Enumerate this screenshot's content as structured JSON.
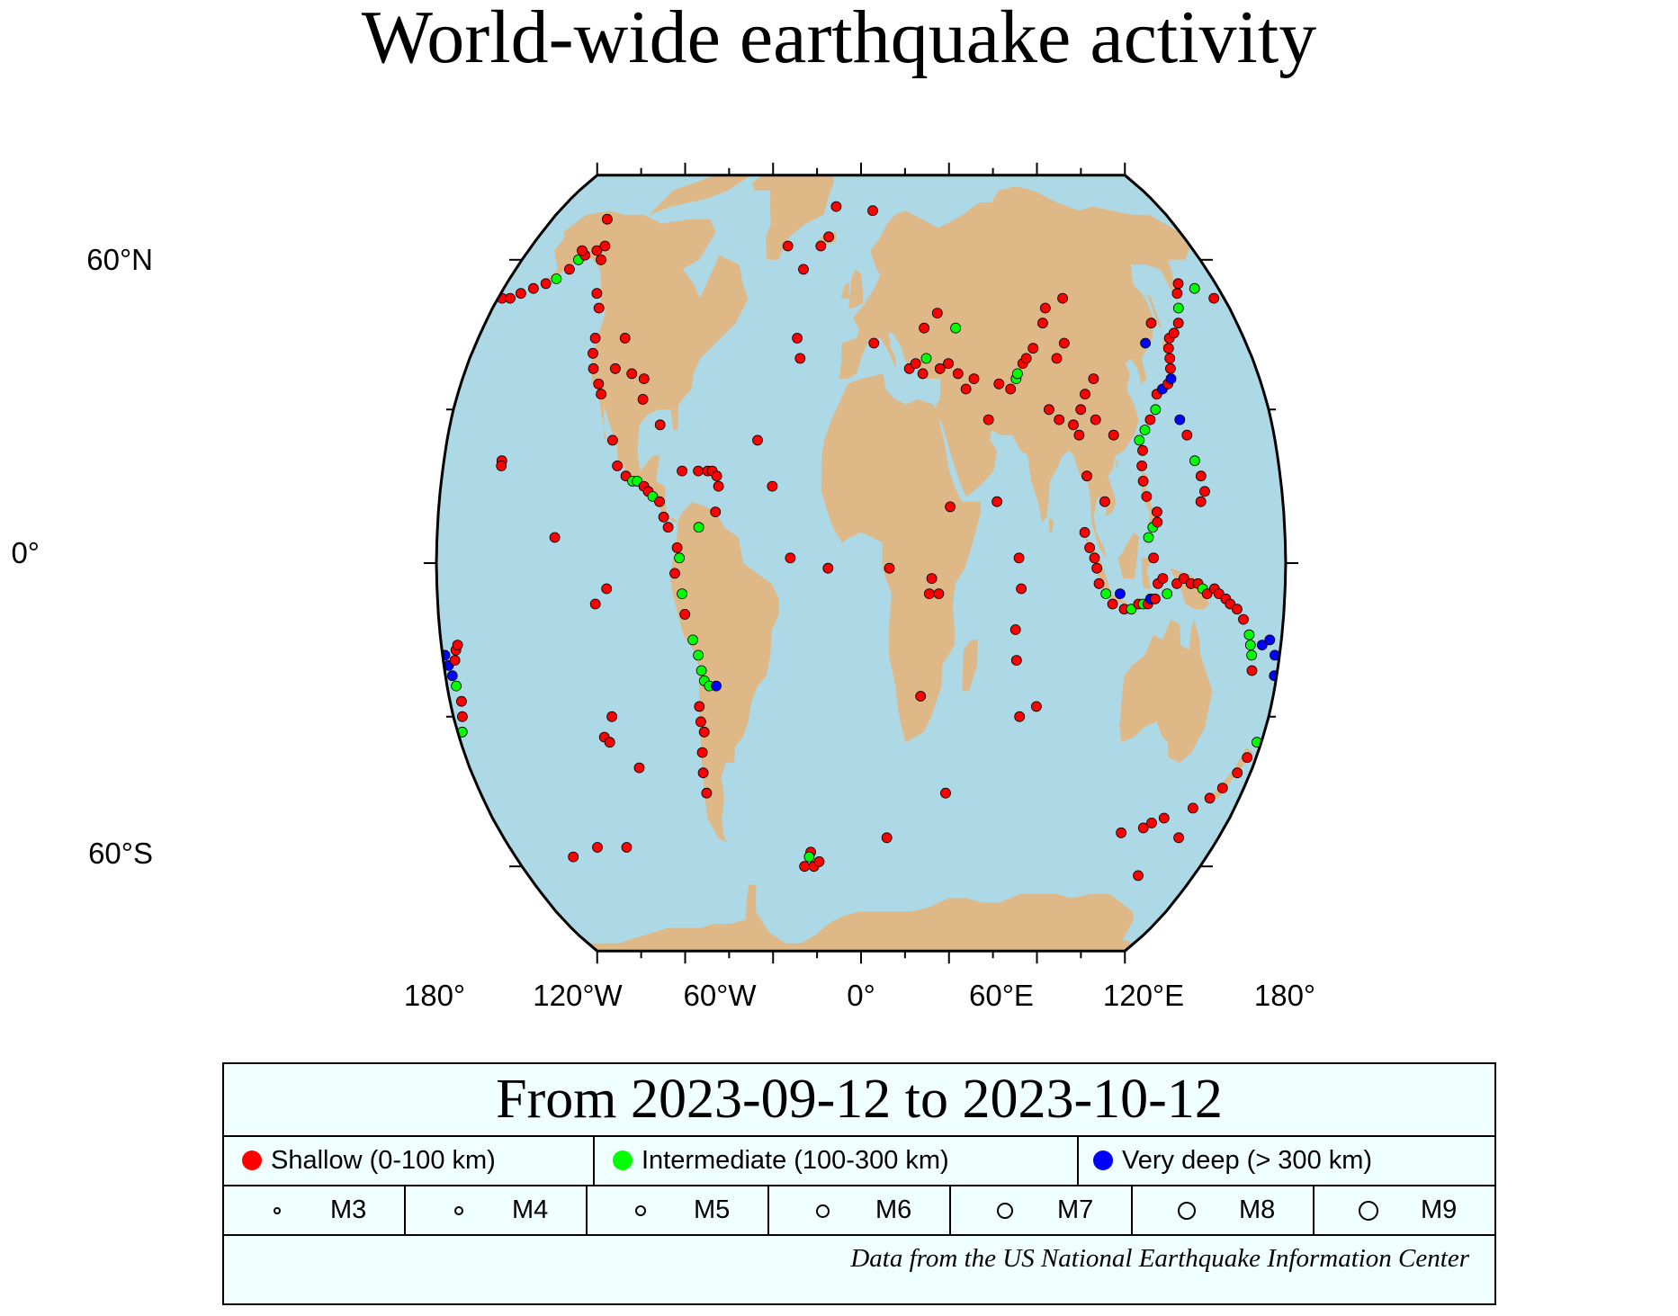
{
  "title": "World-wide earthquake activity",
  "axes": {
    "lat_labels": [
      "60°N",
      "0°",
      "60°S"
    ],
    "lon_labels": [
      "180°",
      "120°W",
      "60°W",
      "0°",
      "60°E",
      "120°E",
      "180°"
    ]
  },
  "colors": {
    "ocean": "#add8e6",
    "land": "#deb887",
    "shallow": "#ff0000",
    "intermediate": "#00ff00",
    "very_deep": "#0000ff",
    "legend_bg": "#f0ffff"
  },
  "legend": {
    "heading": "From 2023-09-12 to 2023-10-12",
    "depth_classes": [
      {
        "label": "Shallow (0-100 km)",
        "color": "#ff0000"
      },
      {
        "label": "Intermediate (100-300 km)",
        "color": "#00ff00"
      },
      {
        "label": "Very deep (> 300 km)",
        "color": "#0000ff"
      }
    ],
    "magnitudes": [
      "M3",
      "M4",
      "M5",
      "M6",
      "M7",
      "M8",
      "M9"
    ],
    "source": "Data from the US National Earthquake Information Center"
  },
  "earthquakes": [
    {
      "lon": -178,
      "lat": 52,
      "depth": "shallow"
    },
    {
      "lon": -174,
      "lat": 52,
      "depth": "shallow"
    },
    {
      "lon": -170,
      "lat": 53,
      "depth": "shallow"
    },
    {
      "lon": -165,
      "lat": 54,
      "depth": "shallow"
    },
    {
      "lon": -160,
      "lat": 55,
      "depth": "shallow"
    },
    {
      "lon": -156,
      "lat": 56,
      "depth": "intermediate"
    },
    {
      "lon": -152,
      "lat": 58,
      "depth": "shallow"
    },
    {
      "lon": -150,
      "lat": 60,
      "depth": "intermediate"
    },
    {
      "lon": -148,
      "lat": 61,
      "depth": "shallow"
    },
    {
      "lon": -151,
      "lat": 62,
      "depth": "shallow"
    },
    {
      "lon": -143,
      "lat": 62,
      "depth": "shallow"
    },
    {
      "lon": -140,
      "lat": 63,
      "depth": "shallow"
    },
    {
      "lon": -138,
      "lat": 60,
      "depth": "shallow"
    },
    {
      "lon": -148,
      "lat": 69,
      "depth": "shallow"
    },
    {
      "lon": -132,
      "lat": 53,
      "depth": "shallow"
    },
    {
      "lon": -128,
      "lat": 50,
      "depth": "shallow"
    },
    {
      "lon": -125,
      "lat": 44,
      "depth": "shallow"
    },
    {
      "lon": -124,
      "lat": 41,
      "depth": "shallow"
    },
    {
      "lon": -122,
      "lat": 38,
      "depth": "shallow"
    },
    {
      "lon": -118,
      "lat": 35,
      "depth": "shallow"
    },
    {
      "lon": -116,
      "lat": 33,
      "depth": "shallow"
    },
    {
      "lon": -112,
      "lat": 38,
      "depth": "shallow"
    },
    {
      "lon": -111,
      "lat": 44,
      "depth": "shallow"
    },
    {
      "lon": -104,
      "lat": 37,
      "depth": "shallow"
    },
    {
      "lon": -98,
      "lat": 36,
      "depth": "shallow"
    },
    {
      "lon": -97,
      "lat": 32,
      "depth": "shallow"
    },
    {
      "lon": -155,
      "lat": 20,
      "depth": "shallow"
    },
    {
      "lon": -155,
      "lat": 19,
      "depth": "shallow"
    },
    {
      "lon": -108,
      "lat": 24,
      "depth": "shallow"
    },
    {
      "lon": -105,
      "lat": 19,
      "depth": "shallow"
    },
    {
      "lon": -101,
      "lat": 17,
      "depth": "shallow"
    },
    {
      "lon": -98,
      "lat": 16,
      "depth": "intermediate"
    },
    {
      "lon": -96,
      "lat": 16,
      "depth": "intermediate"
    },
    {
      "lon": -93,
      "lat": 15,
      "depth": "shallow"
    },
    {
      "lon": -91,
      "lat": 14,
      "depth": "shallow"
    },
    {
      "lon": -89,
      "lat": 13,
      "depth": "intermediate"
    },
    {
      "lon": -86,
      "lat": 12,
      "depth": "shallow"
    },
    {
      "lon": -84,
      "lat": 9,
      "depth": "shallow"
    },
    {
      "lon": -82,
      "lat": 7,
      "depth": "shallow"
    },
    {
      "lon": -78,
      "lat": 3,
      "depth": "shallow"
    },
    {
      "lon": -77,
      "lat": 1,
      "depth": "intermediate"
    },
    {
      "lon": -79,
      "lat": -2,
      "depth": "shallow"
    },
    {
      "lon": -76,
      "lat": -6,
      "depth": "intermediate"
    },
    {
      "lon": -75,
      "lat": -10,
      "depth": "shallow"
    },
    {
      "lon": -72,
      "lat": -15,
      "depth": "intermediate"
    },
    {
      "lon": -70,
      "lat": -18,
      "depth": "intermediate"
    },
    {
      "lon": -69,
      "lat": -21,
      "depth": "intermediate"
    },
    {
      "lon": -68,
      "lat": -23,
      "depth": "intermediate"
    },
    {
      "lon": -66,
      "lat": -24,
      "depth": "intermediate"
    },
    {
      "lon": -63,
      "lat": -24,
      "depth": "very_deep"
    },
    {
      "lon": -71,
      "lat": -28,
      "depth": "shallow"
    },
    {
      "lon": -71,
      "lat": -31,
      "depth": "shallow"
    },
    {
      "lon": -70,
      "lat": -33,
      "depth": "shallow"
    },
    {
      "lon": -72,
      "lat": -37,
      "depth": "shallow"
    },
    {
      "lon": -73,
      "lat": -41,
      "depth": "shallow"
    },
    {
      "lon": -73,
      "lat": -45,
      "depth": "shallow"
    },
    {
      "lon": -70,
      "lat": 18,
      "depth": "shallow"
    },
    {
      "lon": -66,
      "lat": 18,
      "depth": "shallow"
    },
    {
      "lon": -64,
      "lat": 18,
      "depth": "shallow"
    },
    {
      "lon": -62,
      "lat": 17,
      "depth": "shallow"
    },
    {
      "lon": -77,
      "lat": 18,
      "depth": "shallow"
    },
    {
      "lon": -61,
      "lat": 15,
      "depth": "shallow"
    },
    {
      "lon": -62,
      "lat": 10,
      "depth": "shallow"
    },
    {
      "lon": -69,
      "lat": 7,
      "depth": "intermediate"
    },
    {
      "lon": -38,
      "lat": 15,
      "depth": "shallow"
    },
    {
      "lon": -28,
      "lat": 40,
      "depth": "shallow"
    },
    {
      "lon": -30,
      "lat": 44,
      "depth": "shallow"
    },
    {
      "lon": -45,
      "lat": 24,
      "depth": "shallow"
    },
    {
      "lon": -14,
      "lat": -1,
      "depth": "shallow"
    },
    {
      "lon": -30,
      "lat": 1,
      "depth": "shallow"
    },
    {
      "lon": -18,
      "lat": 65,
      "depth": "shallow"
    },
    {
      "lon": -22,
      "lat": 63,
      "depth": "shallow"
    },
    {
      "lon": -15,
      "lat": 72,
      "depth": "shallow"
    },
    {
      "lon": 7,
      "lat": 71,
      "depth": "shallow"
    },
    {
      "lon": -30,
      "lat": 58,
      "depth": "shallow"
    },
    {
      "lon": -40,
      "lat": 63,
      "depth": "shallow"
    },
    {
      "lon": -88,
      "lat": 27,
      "depth": "shallow"
    },
    {
      "lon": -130,
      "lat": 5,
      "depth": "shallow"
    },
    {
      "lon": -108,
      "lat": -5,
      "depth": "shallow"
    },
    {
      "lon": -113,
      "lat": -8,
      "depth": "shallow"
    },
    {
      "lon": -110,
      "lat": -30,
      "depth": "shallow"
    },
    {
      "lon": -115,
      "lat": -34,
      "depth": "shallow"
    },
    {
      "lon": -113,
      "lat": -35,
      "depth": "shallow"
    },
    {
      "lon": -102,
      "lat": -40,
      "depth": "shallow"
    },
    {
      "lon": -120,
      "lat": -56,
      "depth": "shallow"
    },
    {
      "lon": -135,
      "lat": -56,
      "depth": "shallow"
    },
    {
      "lon": -150,
      "lat": -58,
      "depth": "shallow"
    },
    {
      "lon": -26,
      "lat": -57,
      "depth": "shallow"
    },
    {
      "lon": -27,
      "lat": -58,
      "depth": "intermediate"
    },
    {
      "lon": -25,
      "lat": -60,
      "depth": "shallow"
    },
    {
      "lon": -22,
      "lat": -59,
      "depth": "shallow"
    },
    {
      "lon": -30,
      "lat": -60,
      "depth": "shallow"
    },
    {
      "lon": 13,
      "lat": -54,
      "depth": "shallow"
    },
    {
      "lon": 40,
      "lat": -45,
      "depth": "shallow"
    },
    {
      "lon": 70,
      "lat": -30,
      "depth": "shallow"
    },
    {
      "lon": 77,
      "lat": -28,
      "depth": "shallow"
    },
    {
      "lon": 67,
      "lat": -19,
      "depth": "shallow"
    },
    {
      "lon": 66,
      "lat": -13,
      "depth": "shallow"
    },
    {
      "lon": 68,
      "lat": -5,
      "depth": "shallow"
    },
    {
      "lon": 67,
      "lat": 1,
      "depth": "shallow"
    },
    {
      "lon": 58,
      "lat": 12,
      "depth": "shallow"
    },
    {
      "lon": 38,
      "lat": 11,
      "depth": "shallow"
    },
    {
      "lon": 30,
      "lat": -3,
      "depth": "shallow"
    },
    {
      "lon": 29,
      "lat": -6,
      "depth": "shallow"
    },
    {
      "lon": 33,
      "lat": -6,
      "depth": "shallow"
    },
    {
      "lon": 26,
      "lat": -26,
      "depth": "shallow"
    },
    {
      "lon": 12,
      "lat": -1,
      "depth": "shallow"
    },
    {
      "lon": 6,
      "lat": 43,
      "depth": "shallow"
    },
    {
      "lon": 22,
      "lat": 38,
      "depth": "shallow"
    },
    {
      "lon": 25,
      "lat": 39,
      "depth": "shallow"
    },
    {
      "lon": 28,
      "lat": 37,
      "depth": "shallow"
    },
    {
      "lon": 30,
      "lat": 40,
      "depth": "intermediate"
    },
    {
      "lon": 36,
      "lat": 38,
      "depth": "shallow"
    },
    {
      "lon": 40,
      "lat": 39,
      "depth": "shallow"
    },
    {
      "lon": 44,
      "lat": 37,
      "depth": "shallow"
    },
    {
      "lon": 47,
      "lat": 34,
      "depth": "shallow"
    },
    {
      "lon": 51,
      "lat": 36,
      "depth": "shallow"
    },
    {
      "lon": 56,
      "lat": 28,
      "depth": "shallow"
    },
    {
      "lon": 45,
      "lat": 46,
      "depth": "intermediate"
    },
    {
      "lon": 30,
      "lat": 46,
      "depth": "shallow"
    },
    {
      "lon": 37,
      "lat": 49,
      "depth": "shallow"
    },
    {
      "lon": 62,
      "lat": 35,
      "depth": "shallow"
    },
    {
      "lon": 67,
      "lat": 34,
      "depth": "shallow"
    },
    {
      "lon": 70,
      "lat": 36,
      "depth": "intermediate"
    },
    {
      "lon": 71,
      "lat": 37,
      "depth": "intermediate"
    },
    {
      "lon": 74,
      "lat": 39,
      "depth": "shallow"
    },
    {
      "lon": 76,
      "lat": 40,
      "depth": "shallow"
    },
    {
      "lon": 80,
      "lat": 42,
      "depth": "shallow"
    },
    {
      "lon": 83,
      "lat": 30,
      "depth": "shallow"
    },
    {
      "lon": 87,
      "lat": 28,
      "depth": "shallow"
    },
    {
      "lon": 93,
      "lat": 27,
      "depth": "shallow"
    },
    {
      "lon": 95,
      "lat": 25,
      "depth": "shallow"
    },
    {
      "lon": 97,
      "lat": 30,
      "depth": "shallow"
    },
    {
      "lon": 100,
      "lat": 33,
      "depth": "shallow"
    },
    {
      "lon": 103,
      "lat": 28,
      "depth": "shallow"
    },
    {
      "lon": 90,
      "lat": 40,
      "depth": "shallow"
    },
    {
      "lon": 105,
      "lat": 36,
      "depth": "shallow"
    },
    {
      "lon": 95,
      "lat": 43,
      "depth": "shallow"
    },
    {
      "lon": 87,
      "lat": 47,
      "depth": "shallow"
    },
    {
      "lon": 90,
      "lat": 50,
      "depth": "shallow"
    },
    {
      "lon": 100,
      "lat": 52,
      "depth": "shallow"
    },
    {
      "lon": 110,
      "lat": 25,
      "depth": "shallow"
    },
    {
      "lon": 97,
      "lat": 17,
      "depth": "shallow"
    },
    {
      "lon": 104,
      "lat": 12,
      "depth": "shallow"
    },
    {
      "lon": 95,
      "lat": 6,
      "depth": "shallow"
    },
    {
      "lon": 97,
      "lat": 3,
      "depth": "shallow"
    },
    {
      "lon": 99,
      "lat": 1,
      "depth": "shallow"
    },
    {
      "lon": 100,
      "lat": -1,
      "depth": "shallow"
    },
    {
      "lon": 101,
      "lat": -4,
      "depth": "shallow"
    },
    {
      "lon": 104,
      "lat": -6,
      "depth": "intermediate"
    },
    {
      "lon": 107,
      "lat": -8,
      "depth": "shallow"
    },
    {
      "lon": 110,
      "lat": -6,
      "depth": "very_deep"
    },
    {
      "lon": 112,
      "lat": -9,
      "depth": "shallow"
    },
    {
      "lon": 115,
      "lat": -9,
      "depth": "intermediate"
    },
    {
      "lon": 118,
      "lat": -8,
      "depth": "shallow"
    },
    {
      "lon": 120,
      "lat": -8,
      "depth": "intermediate"
    },
    {
      "lon": 122,
      "lat": -8,
      "depth": "shallow"
    },
    {
      "lon": 123,
      "lat": -7,
      "depth": "very_deep"
    },
    {
      "lon": 125,
      "lat": -7,
      "depth": "shallow"
    },
    {
      "lon": 126,
      "lat": -4,
      "depth": "shallow"
    },
    {
      "lon": 128,
      "lat": -3,
      "depth": "shallow"
    },
    {
      "lon": 130,
      "lat": -6,
      "depth": "intermediate"
    },
    {
      "lon": 134,
      "lat": -4,
      "depth": "shallow"
    },
    {
      "lon": 137,
      "lat": -3,
      "depth": "shallow"
    },
    {
      "lon": 140,
      "lat": -4,
      "depth": "shallow"
    },
    {
      "lon": 143,
      "lat": -4,
      "depth": "shallow"
    },
    {
      "lon": 145,
      "lat": -5,
      "depth": "intermediate"
    },
    {
      "lon": 147,
      "lat": -6,
      "depth": "shallow"
    },
    {
      "lon": 150,
      "lat": -5,
      "depth": "shallow"
    },
    {
      "lon": 152,
      "lat": -6,
      "depth": "shallow"
    },
    {
      "lon": 155,
      "lat": -7,
      "depth": "shallow"
    },
    {
      "lon": 157,
      "lat": -8,
      "depth": "shallow"
    },
    {
      "lon": 160,
      "lat": -9,
      "depth": "shallow"
    },
    {
      "lon": 163,
      "lat": -11,
      "depth": "shallow"
    },
    {
      "lon": 166,
      "lat": -14,
      "depth": "intermediate"
    },
    {
      "lon": 167,
      "lat": -16,
      "depth": "intermediate"
    },
    {
      "lon": 168,
      "lat": -18,
      "depth": "intermediate"
    },
    {
      "lon": 169,
      "lat": -21,
      "depth": "shallow"
    },
    {
      "lon": 172,
      "lat": -16,
      "depth": "very_deep"
    },
    {
      "lon": 175,
      "lat": -15,
      "depth": "very_deep"
    },
    {
      "lon": 178,
      "lat": -18,
      "depth": "very_deep"
    },
    {
      "lon": 179,
      "lat": -22,
      "depth": "very_deep"
    },
    {
      "lon": -179,
      "lat": -18,
      "depth": "very_deep"
    },
    {
      "lon": -178,
      "lat": -20,
      "depth": "very_deep"
    },
    {
      "lon": -177,
      "lat": -22,
      "depth": "very_deep"
    },
    {
      "lon": -176,
      "lat": -24,
      "depth": "intermediate"
    },
    {
      "lon": -175,
      "lat": -19,
      "depth": "shallow"
    },
    {
      "lon": -174,
      "lat": -17,
      "depth": "shallow"
    },
    {
      "lon": -173,
      "lat": -16,
      "depth": "shallow"
    },
    {
      "lon": -175,
      "lat": -27,
      "depth": "shallow"
    },
    {
      "lon": -176,
      "lat": -30,
      "depth": "shallow"
    },
    {
      "lon": -178,
      "lat": -33,
      "depth": "intermediate"
    },
    {
      "lon": 178,
      "lat": -35,
      "depth": "intermediate"
    },
    {
      "lon": 176,
      "lat": -38,
      "depth": "shallow"
    },
    {
      "lon": 174,
      "lat": -41,
      "depth": "shallow"
    },
    {
      "lon": 170,
      "lat": -44,
      "depth": "shallow"
    },
    {
      "lon": 166,
      "lat": -46,
      "depth": "shallow"
    },
    {
      "lon": 160,
      "lat": -48,
      "depth": "shallow"
    },
    {
      "lon": 148,
      "lat": -50,
      "depth": "shallow"
    },
    {
      "lon": 140,
      "lat": -52,
      "depth": "shallow"
    },
    {
      "lon": 130,
      "lat": -53,
      "depth": "shallow"
    },
    {
      "lon": 150,
      "lat": -62,
      "depth": "shallow"
    },
    {
      "lon": 143,
      "lat": -51,
      "depth": "shallow"
    },
    {
      "lon": 160,
      "lat": -54,
      "depth": "shallow"
    },
    {
      "lon": 124,
      "lat": 1,
      "depth": "shallow"
    },
    {
      "lon": 122,
      "lat": 5,
      "depth": "intermediate"
    },
    {
      "lon": 124,
      "lat": 7,
      "depth": "intermediate"
    },
    {
      "lon": 126,
      "lat": 8,
      "depth": "shallow"
    },
    {
      "lon": 126,
      "lat": 10,
      "depth": "shallow"
    },
    {
      "lon": 122,
      "lat": 13,
      "depth": "shallow"
    },
    {
      "lon": 121,
      "lat": 16,
      "depth": "shallow"
    },
    {
      "lon": 121,
      "lat": 19,
      "depth": "shallow"
    },
    {
      "lon": 122,
      "lat": 22,
      "depth": "shallow"
    },
    {
      "lon": 121,
      "lat": 24,
      "depth": "intermediate"
    },
    {
      "lon": 124,
      "lat": 26,
      "depth": "intermediate"
    },
    {
      "lon": 127,
      "lat": 28,
      "depth": "shallow"
    },
    {
      "lon": 130,
      "lat": 30,
      "depth": "intermediate"
    },
    {
      "lon": 132,
      "lat": 33,
      "depth": "shallow"
    },
    {
      "lon": 135,
      "lat": 34,
      "depth": "very_deep"
    },
    {
      "lon": 138,
      "lat": 35,
      "depth": "shallow"
    },
    {
      "lon": 140,
      "lat": 36,
      "depth": "very_deep"
    },
    {
      "lon": 141,
      "lat": 38,
      "depth": "shallow"
    },
    {
      "lon": 142,
      "lat": 40,
      "depth": "shallow"
    },
    {
      "lon": 143,
      "lat": 42,
      "depth": "shallow"
    },
    {
      "lon": 145,
      "lat": 44,
      "depth": "shallow"
    },
    {
      "lon": 148,
      "lat": 45,
      "depth": "shallow"
    },
    {
      "lon": 152,
      "lat": 47,
      "depth": "shallow"
    },
    {
      "lon": 155,
      "lat": 50,
      "depth": "intermediate"
    },
    {
      "lon": 158,
      "lat": 53,
      "depth": "shallow"
    },
    {
      "lon": 161,
      "lat": 55,
      "depth": "shallow"
    },
    {
      "lon": 140,
      "lat": 28,
      "depth": "very_deep"
    },
    {
      "lon": 142,
      "lat": 25,
      "depth": "shallow"
    },
    {
      "lon": 144,
      "lat": 20,
      "depth": "intermediate"
    },
    {
      "lon": 146,
      "lat": 17,
      "depth": "shallow"
    },
    {
      "lon": 147,
      "lat": 14,
      "depth": "shallow"
    },
    {
      "lon": 145,
      "lat": 12,
      "depth": "shallow"
    },
    {
      "lon": 133,
      "lat": 43,
      "depth": "very_deep"
    },
    {
      "lon": 139,
      "lat": 47,
      "depth": "shallow"
    },
    {
      "lon": 168,
      "lat": 54,
      "depth": "intermediate"
    },
    {
      "lon": 175,
      "lat": 52,
      "depth": "shallow"
    }
  ]
}
